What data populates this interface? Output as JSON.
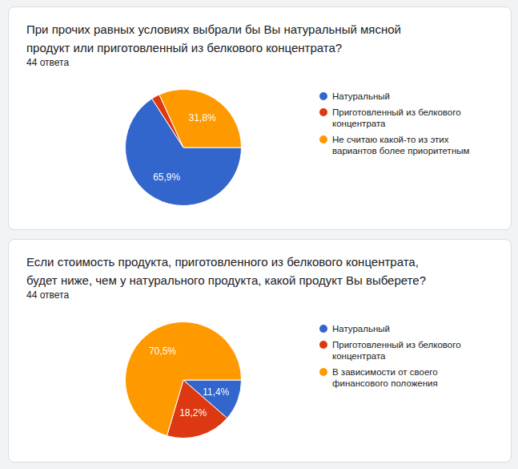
{
  "chart_data": [
    {
      "type": "pie",
      "title": "При прочих равных условиях выбрали бы Вы натуральный мясной продукт или приготовленный из белкового концентрата?",
      "subtitle": "44 ответа",
      "categories": [
        "Натуральный",
        "Приготовленный из белкового концентрата",
        "Не считаю какой-то из этих вариантов более приоритетным"
      ],
      "values": [
        65.9,
        2.3,
        31.8
      ],
      "value_labels": [
        "65,9%",
        null,
        "31,8%"
      ],
      "colors": [
        "#3366cc",
        "#dc3912",
        "#ff9900"
      ],
      "data_labels": true,
      "legend": "right"
    },
    {
      "type": "pie",
      "title": "Если стоимость продукта, приготовленного из белкового концентрата, будет ниже, чем у натурального продукта, какой продукт Вы выберете?",
      "subtitle": "44 ответа",
      "categories": [
        "Натуральный",
        "Приготовленный из белкового концентрата",
        "В зависимости от своего финансового положения"
      ],
      "values": [
        11.4,
        18.2,
        70.5
      ],
      "value_labels": [
        "11,4%",
        "18,2%",
        "70,5%"
      ],
      "colors": [
        "#3366cc",
        "#dc3912",
        "#ff9900"
      ],
      "data_labels": true,
      "legend": "right"
    }
  ]
}
